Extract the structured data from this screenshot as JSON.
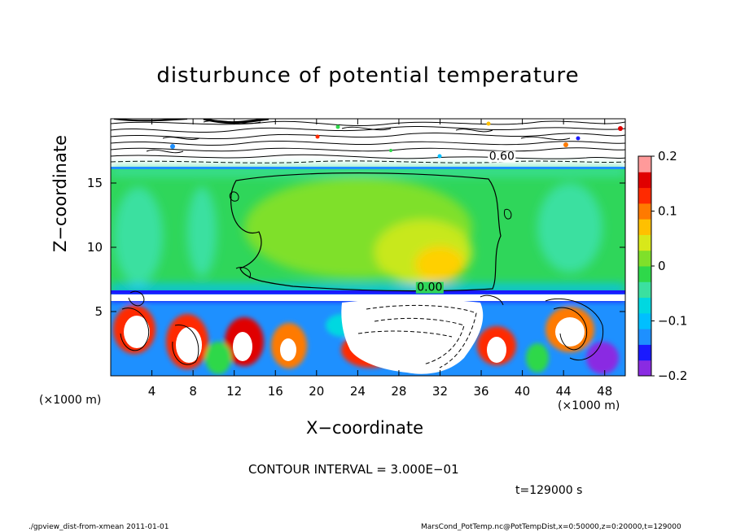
{
  "chart_data": {
    "type": "heatmap",
    "title": "disturbunce of potential temperature",
    "xlabel": "X−coordinate",
    "ylabel": "Z−coordinate",
    "x_unit_left": "(×1000 m)",
    "x_unit_right": "(×1000 m)",
    "xlim": [
      0,
      50
    ],
    "ylim": [
      0,
      20
    ],
    "x_ticks": [
      4,
      8,
      12,
      16,
      20,
      24,
      28,
      32,
      36,
      40,
      44,
      48
    ],
    "y_ticks": [
      5,
      10,
      15
    ],
    "colorbar": {
      "range": [
        -0.2,
        0.2
      ],
      "ticks": [
        0.2,
        0.1,
        0,
        -0.1,
        -0.2
      ],
      "tick_labels": [
        "0.2",
        "0.1",
        "0",
        "−0.1",
        "−0.2"
      ],
      "colors": [
        "#8a2be2",
        "#1a1aff",
        "#1e90ff",
        "#00bfff",
        "#00d8e0",
        "#3be0a0",
        "#2ed84a",
        "#7fe02a",
        "#d8e81a",
        "#ffc000",
        "#ff7a00",
        "#ff2a00",
        "#e00000",
        "#ff9a9a"
      ]
    },
    "contour_labels": [
      {
        "text": "0.60",
        "x": 38,
        "z": 16.8
      },
      {
        "text": "0.00",
        "x": 31,
        "z": 6.6
      }
    ],
    "contour_interval": "CONTOUR INTERVAL = 3.000E−01",
    "time": "t=129000 s"
  },
  "footer": {
    "left": "./gpview_dist-from-xmean  2011-01-01",
    "right": "MarsCond_PotTemp.nc@PotTempDist,x=0:50000,z=0:20000,t=129000"
  }
}
